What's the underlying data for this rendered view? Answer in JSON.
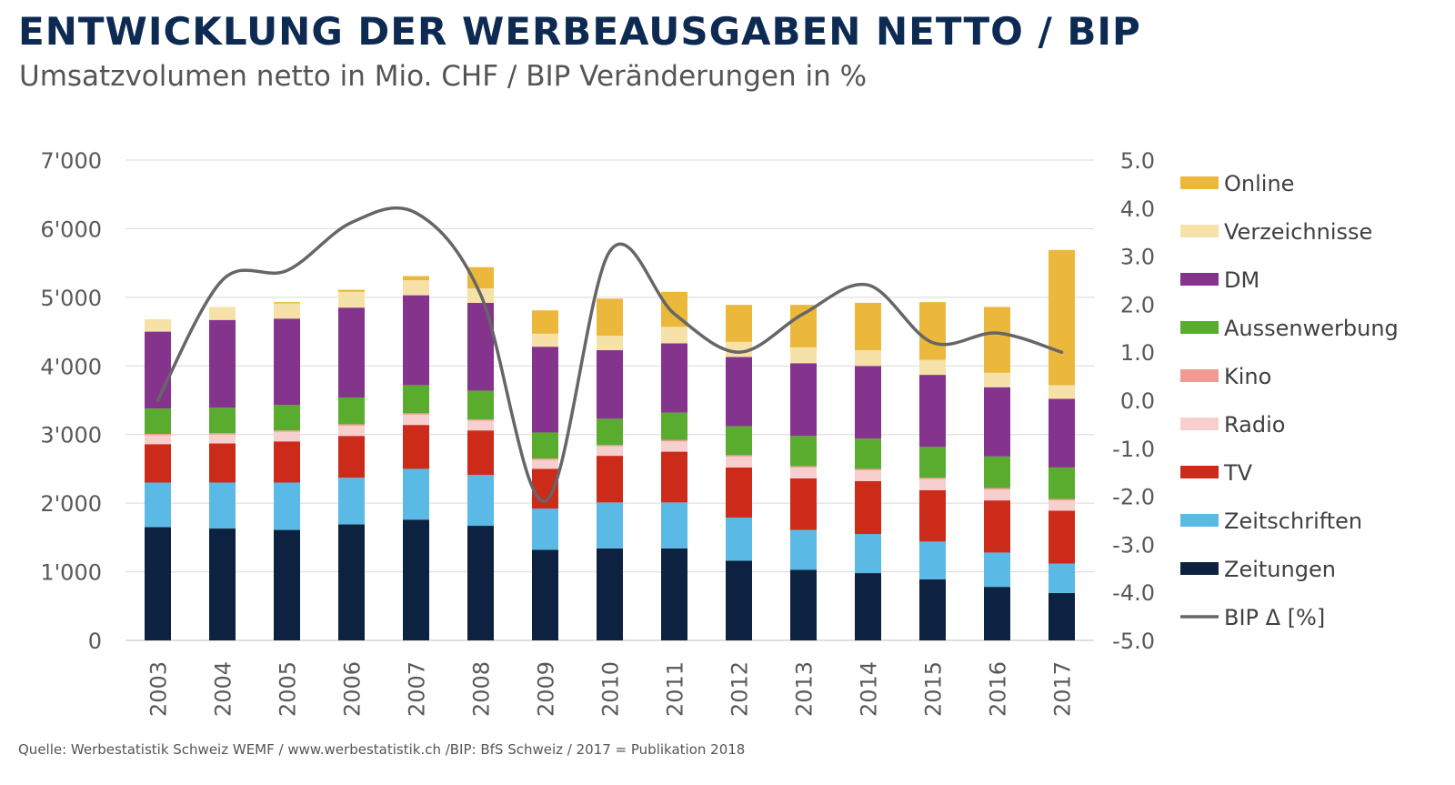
{
  "title": "ENTWICKLUNG DER WERBEAUSGABEN NETTO / BIP",
  "subtitle": "Umsatzvolumen netto in Mio. CHF / BIP Veränderungen in %",
  "source": "Quelle: Werbestatistik Schweiz WEMF / www.werbestatistik.ch /BIP: BfS Schweiz / 2017 = Publikation 2018",
  "chart_data": {
    "type": "bar",
    "stacked": true,
    "categories": [
      "2003",
      "2004",
      "2005",
      "2006",
      "2007",
      "2008",
      "2009",
      "2010",
      "2011",
      "2012",
      "2013",
      "2014",
      "2015",
      "2016",
      "2017"
    ],
    "ylim": [
      0,
      7000
    ],
    "y_ticks": [
      "0",
      "1'000",
      "2'000",
      "3'000",
      "4'000",
      "5'000",
      "6'000",
      "7'000"
    ],
    "y2lim": [
      -5,
      5
    ],
    "y2_ticks": [
      "-5.0",
      "-4.0",
      "-3.0",
      "-2.0",
      "-1.0",
      "0.0",
      "1.0",
      "2.0",
      "3.0",
      "4.0",
      "5.0"
    ],
    "grid": true,
    "series": [
      {
        "name": "Zeitungen",
        "color": "#0d2240",
        "values": [
          1650,
          1630,
          1610,
          1690,
          1760,
          1670,
          1320,
          1340,
          1340,
          1160,
          1030,
          980,
          890,
          780,
          690
        ]
      },
      {
        "name": "Zeitschriften",
        "color": "#5bb9e6",
        "values": [
          650,
          670,
          690,
          680,
          740,
          740,
          600,
          670,
          670,
          630,
          580,
          570,
          550,
          500,
          430
        ]
      },
      {
        "name": "TV",
        "color": "#cc2b1a",
        "values": [
          560,
          570,
          600,
          610,
          640,
          650,
          580,
          680,
          740,
          730,
          750,
          770,
          750,
          760,
          770
        ]
      },
      {
        "name": "Radio",
        "color": "#f7cfcf",
        "values": [
          130,
          130,
          140,
          150,
          150,
          140,
          130,
          140,
          150,
          160,
          160,
          160,
          160,
          160,
          150
        ]
      },
      {
        "name": "Kino",
        "color": "#f19a92",
        "values": [
          20,
          20,
          20,
          20,
          20,
          20,
          20,
          20,
          20,
          20,
          20,
          20,
          20,
          20,
          20
        ]
      },
      {
        "name": "Aussenwerbung",
        "color": "#5aac2f",
        "values": [
          370,
          370,
          370,
          390,
          410,
          420,
          380,
          380,
          400,
          420,
          440,
          440,
          450,
          460,
          460
        ]
      },
      {
        "name": "DM",
        "color": "#85348e",
        "values": [
          1120,
          1280,
          1260,
          1310,
          1310,
          1280,
          1250,
          1000,
          1010,
          1010,
          1060,
          1060,
          1050,
          1010,
          1000
        ]
      },
      {
        "name": "Verzeichnisse",
        "color": "#f6e1a8",
        "values": [
          180,
          190,
          220,
          230,
          220,
          210,
          190,
          210,
          240,
          220,
          230,
          230,
          220,
          210,
          200
        ]
      },
      {
        "name": "Online",
        "color": "#ebb83c",
        "values": [
          0,
          0,
          20,
          30,
          60,
          310,
          340,
          540,
          510,
          540,
          620,
          690,
          840,
          960,
          1970
        ]
      }
    ],
    "line": {
      "name": "BIP Δ [%]",
      "color": "#666666",
      "axis": "right",
      "values": [
        0.0,
        2.5,
        2.7,
        3.7,
        3.9,
        2.2,
        -2.1,
        3.1,
        1.8,
        1.0,
        1.8,
        2.4,
        1.2,
        1.4,
        1.0
      ]
    },
    "legend_order": [
      "Online",
      "Verzeichnisse",
      "DM",
      "Aussenwerbung",
      "Kino",
      "Radio",
      "TV",
      "Zeitschriften",
      "Zeitungen",
      "BIP Δ [%]"
    ],
    "legend_position": "right"
  }
}
